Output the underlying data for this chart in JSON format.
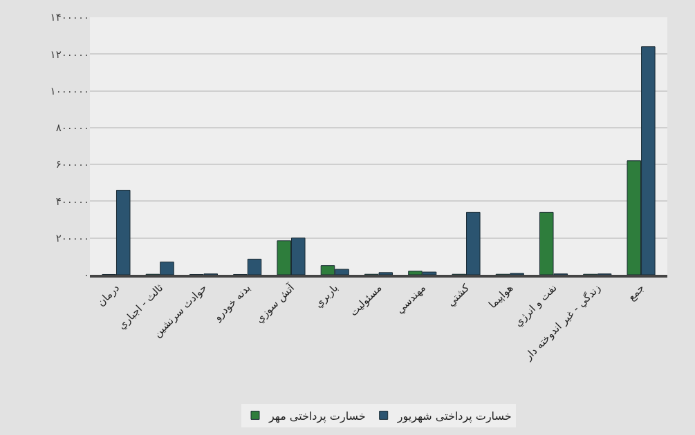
{
  "chart_data": {
    "type": "bar",
    "categories": [
      "درمان",
      "ثالث - اجباري",
      "حوادث سرنشين",
      "بدنه خودرو",
      "آتش سوزي",
      "باربري",
      "مسئوليت",
      "مهندسي",
      "كشتي",
      "هواپيما",
      "نفت و انرژي",
      "زندگي - غير اندوخته دار",
      "جمع"
    ],
    "series": [
      {
        "name": "خسارت پرداختی مهر",
        "color": "#2e7d3c",
        "values": [
          2000,
          3000,
          2000,
          2000,
          185000,
          50000,
          3000,
          20000,
          3000,
          3000,
          340000,
          3000,
          620000
        ]
      },
      {
        "name": "خسارت پرداختی شهریور",
        "color": "#2b5470",
        "values": [
          460000,
          70000,
          5000,
          85000,
          200000,
          30000,
          12000,
          15000,
          340000,
          8000,
          5000,
          5000,
          1240000
        ]
      }
    ],
    "ylim": [
      0,
      1400000
    ],
    "yticks": [
      {
        "value": 0,
        "label": "۰"
      },
      {
        "value": 200000,
        "label": "۲۰۰۰۰۰"
      },
      {
        "value": 400000,
        "label": "۴۰۰۰۰۰"
      },
      {
        "value": 600000,
        "label": "۶۰۰۰۰۰"
      },
      {
        "value": 800000,
        "label": "۸۰۰۰۰۰"
      },
      {
        "value": 1000000,
        "label": "۱۰۰۰۰۰۰"
      },
      {
        "value": 1200000,
        "label": "۱۲۰۰۰۰۰"
      },
      {
        "value": 1400000,
        "label": "۱۴۰۰۰۰۰"
      }
    ],
    "grid": "y",
    "legend": "bottom"
  }
}
